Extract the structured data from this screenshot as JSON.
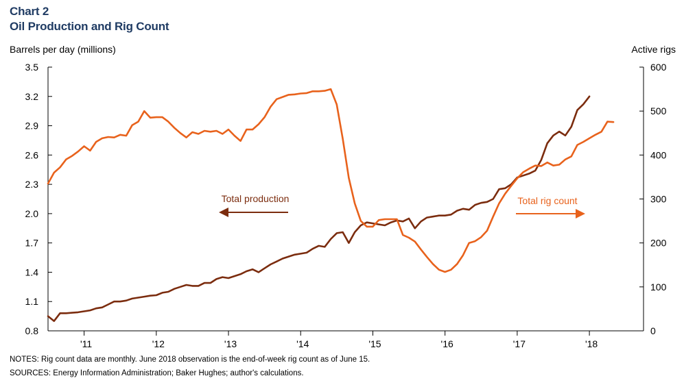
{
  "chart_data": {
    "type": "line",
    "title_line1": "Chart 2",
    "title_line2": "Oil Production and Rig Count",
    "ylabel_left": "Barrels per day (millions)",
    "ylabel_right": "Active rigs",
    "y_left": {
      "min": 0.8,
      "max": 3.5,
      "ticks": [
        "0.8",
        "1.1",
        "1.4",
        "1.7",
        "2.0",
        "2.3",
        "2.6",
        "2.9",
        "3.2",
        "3.5"
      ]
    },
    "y_right": {
      "min": 0,
      "max": 600,
      "ticks": [
        "0",
        "100",
        "200",
        "300",
        "400",
        "500",
        "600"
      ]
    },
    "x_ticks": [
      "'11",
      "'12",
      "'13",
      "'14",
      "'15",
      "'16",
      "'17",
      "'18"
    ],
    "x_start": 2010.5,
    "x_end": 2018.75,
    "series": [
      {
        "name": "Total production",
        "axis": "left",
        "color": "#7b2c0e",
        "start": 2010.5,
        "step": 0.08333,
        "values": [
          0.95,
          0.9,
          0.98,
          0.98,
          0.985,
          0.99,
          1.0,
          1.01,
          1.03,
          1.04,
          1.07,
          1.1,
          1.1,
          1.11,
          1.13,
          1.14,
          1.15,
          1.16,
          1.165,
          1.19,
          1.2,
          1.23,
          1.25,
          1.27,
          1.26,
          1.26,
          1.29,
          1.29,
          1.33,
          1.35,
          1.34,
          1.36,
          1.38,
          1.41,
          1.43,
          1.4,
          1.44,
          1.48,
          1.51,
          1.54,
          1.56,
          1.58,
          1.59,
          1.6,
          1.64,
          1.67,
          1.66,
          1.74,
          1.8,
          1.81,
          1.7,
          1.81,
          1.88,
          1.91,
          1.9,
          1.89,
          1.88,
          1.91,
          1.93,
          1.92,
          1.95,
          1.85,
          1.92,
          1.96,
          1.97,
          1.98,
          1.98,
          1.99,
          2.03,
          2.05,
          2.04,
          2.09,
          2.11,
          2.12,
          2.15,
          2.25,
          2.26,
          2.3,
          2.37,
          2.39,
          2.41,
          2.44,
          2.55,
          2.72,
          2.8,
          2.84,
          2.8,
          2.89,
          3.06,
          3.12,
          3.2
        ]
      },
      {
        "name": "Total rig count",
        "axis": "right",
        "color": "#e8621c",
        "start": 2010.5,
        "step": 0.08333,
        "values": [
          335,
          360,
          372,
          390,
          398,
          408,
          420,
          410,
          430,
          438,
          441,
          440,
          446,
          444,
          468,
          476,
          500,
          485,
          486,
          486,
          476,
          462,
          450,
          440,
          452,
          448,
          455,
          453,
          455,
          448,
          458,
          444,
          432,
          458,
          458,
          470,
          486,
          510,
          527,
          532,
          537,
          538,
          540,
          541,
          545,
          545,
          546,
          550,
          515,
          437,
          348,
          290,
          250,
          237,
          237,
          252,
          254,
          254,
          254,
          218,
          212,
          203,
          185,
          168,
          152,
          139,
          134,
          139,
          152,
          172,
          200,
          204,
          213,
          228,
          260,
          290,
          312,
          330,
          347,
          361,
          369,
          376,
          375,
          383,
          376,
          378,
          390,
          397,
          423,
          430,
          438,
          446,
          453,
          476,
          475
        ]
      }
    ],
    "annotations": {
      "production_label": "Total production",
      "rig_label": "Total rig count"
    }
  },
  "notes": {
    "notes_text": "NOTES: Rig count data are monthly. June 2018 observation  is the end-of-week  rig count as of June 15.",
    "sources_text": "SOURCES: Energy Information  Administration; Baker Hughes; author's calculations."
  }
}
